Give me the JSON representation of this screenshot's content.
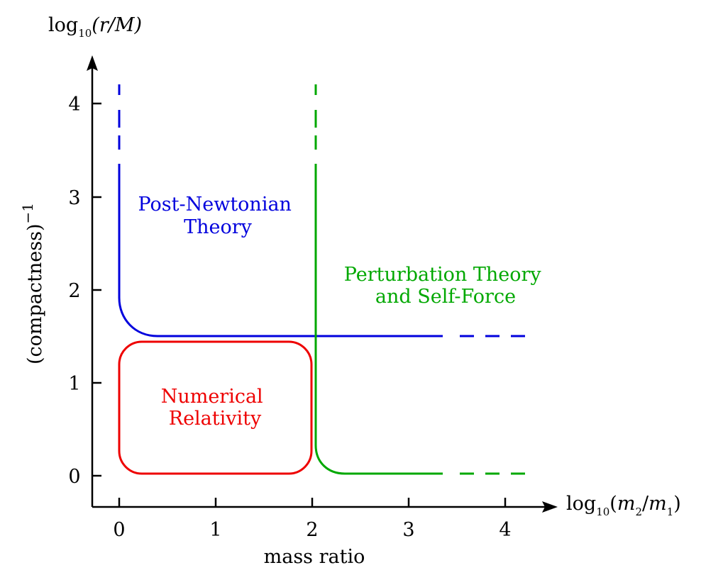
{
  "axes": {
    "x_title_prefix": "log",
    "x_title_base": "10",
    "x_title_arg_open": "(",
    "x_title_num": "m",
    "x_title_num_sub": "2",
    "x_title_slash": "/",
    "x_title_den": "m",
    "x_title_den_sub": "1",
    "x_title_arg_close": ")",
    "x_caption": "mass ratio",
    "y_title_prefix": "log",
    "y_title_base": "10",
    "y_title_arg": "(r/M)",
    "y_caption": "(compactness)",
    "y_caption_exp": "−1",
    "x_ticks": [
      "0",
      "1",
      "2",
      "3",
      "4"
    ],
    "y_ticks": [
      "0",
      "1",
      "2",
      "3",
      "4"
    ]
  },
  "regions": {
    "post_newtonian": {
      "line1": "Post-Newtonian",
      "line2": "Theory",
      "color": "#0000dd"
    },
    "perturbation": {
      "line1": "Perturbation Theory",
      "line2": "and Self-Force",
      "color": "#00a800"
    },
    "numerical": {
      "line1": "Numerical",
      "line2": "Relativity",
      "color": "#ee0000"
    }
  }
}
